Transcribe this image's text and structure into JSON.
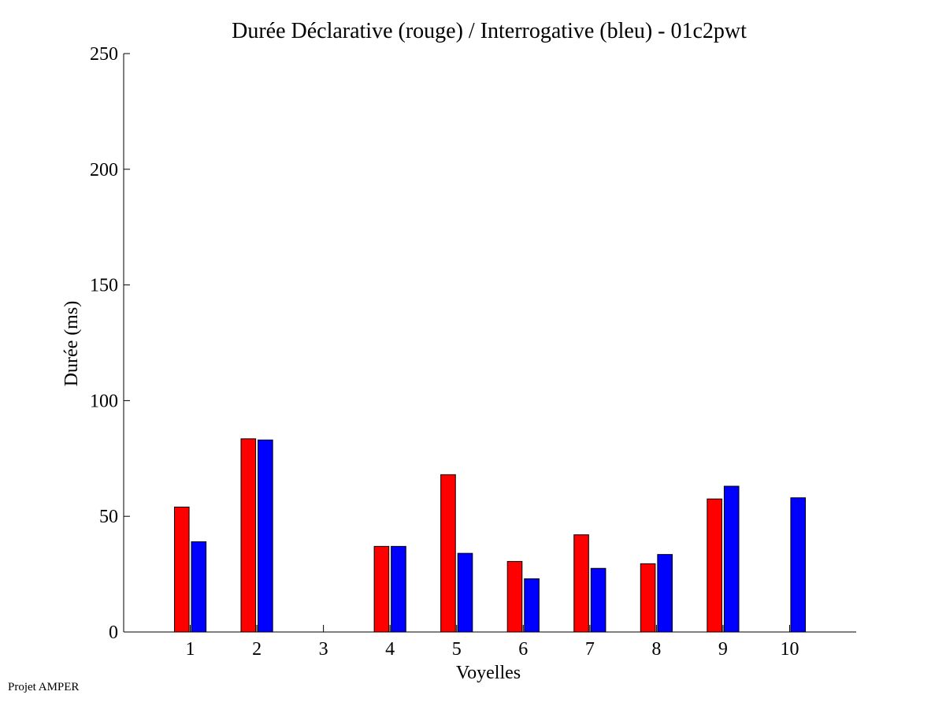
{
  "chart_data": {
    "type": "bar",
    "title": "Durée Déclarative (rouge) / Interrogative (bleu) - 01c2pwt",
    "xlabel": "Voyelles",
    "ylabel": "Durée (ms)",
    "ylim": [
      0,
      250
    ],
    "xlim": [
      0,
      11
    ],
    "y_ticks": [
      0,
      50,
      100,
      150,
      200,
      250
    ],
    "categories": [
      "1",
      "2",
      "3",
      "4",
      "5",
      "6",
      "7",
      "8",
      "9",
      "10"
    ],
    "grid": false,
    "series": [
      {
        "color": "#ff0000",
        "values": [
          54,
          83.5,
          null,
          37,
          68,
          30.5,
          42,
          29.5,
          57.5,
          null
        ]
      },
      {
        "color": "#0000ff",
        "values": [
          39,
          83,
          null,
          37,
          34,
          23,
          27.5,
          33.5,
          63,
          58
        ]
      }
    ]
  },
  "footer": {
    "credit": "Projet AMPER"
  }
}
